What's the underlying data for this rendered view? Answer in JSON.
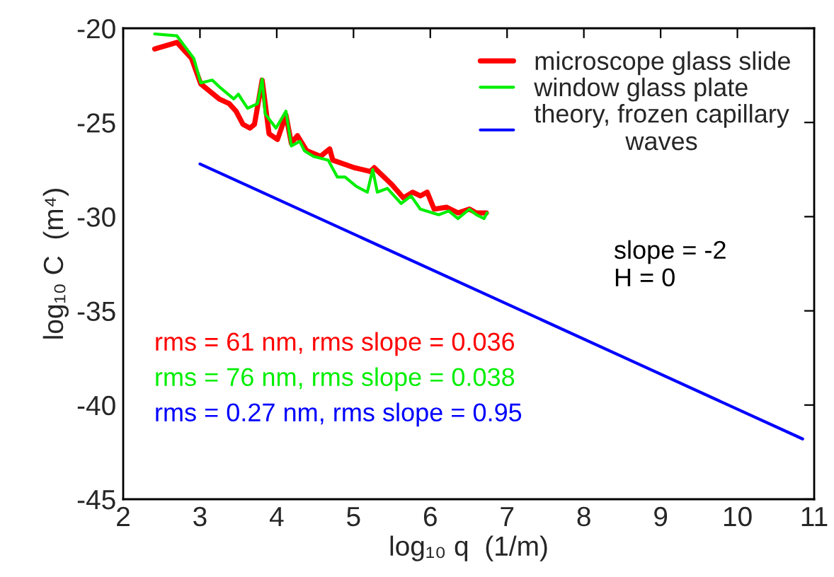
{
  "chart_data": {
    "type": "line",
    "xlabel": "log₁₀ q  (1/m)",
    "ylabel": "log₁₀ C  (m⁴)",
    "xlim": [
      2,
      11
    ],
    "ylim": [
      -45,
      -20
    ],
    "xticks": [
      2,
      3,
      4,
      5,
      6,
      7,
      8,
      9,
      10,
      11
    ],
    "yticks": [
      -45,
      -40,
      -35,
      -30,
      -25,
      -20
    ],
    "grid": false,
    "legend": "top right",
    "marker": "none",
    "line_style": "solid",
    "annotations": [
      "slope = -2\nH = 0",
      "rms = 61 nm, rms slope = 0.036",
      "rms = 76 nm, rms slope = 0.038",
      "rms = 0.27 nm, rms slope = 0.95"
    ],
    "series": [
      {
        "name": "microscope glass slide",
        "color": "#ff0000",
        "x": [
          2.41,
          2.7,
          2.89,
          3.01,
          3.25,
          3.38,
          3.47,
          3.56,
          3.65,
          3.71,
          3.81,
          3.9,
          4.01,
          4.12,
          4.19,
          4.27,
          4.39,
          4.57,
          4.69,
          4.73,
          5.01,
          5.22,
          5.27,
          5.5,
          5.65,
          5.77,
          5.87,
          5.96,
          6.05,
          6.21,
          6.36,
          6.51,
          6.6,
          6.73
        ],
        "values": [
          -21.1,
          -20.75,
          -21.6,
          -22.95,
          -23.75,
          -24.0,
          -24.4,
          -25.1,
          -25.3,
          -25.1,
          -22.75,
          -25.6,
          -25.9,
          -24.6,
          -26.1,
          -25.7,
          -26.5,
          -26.8,
          -26.4,
          -27.0,
          -27.4,
          -27.6,
          -27.4,
          -28.3,
          -29.0,
          -28.7,
          -28.9,
          -28.7,
          -29.6,
          -29.5,
          -29.8,
          -29.6,
          -29.8,
          -29.8
        ]
      },
      {
        "name": "window glass plate",
        "color": "#00ee00",
        "x": [
          2.41,
          2.7,
          2.92,
          3.01,
          3.16,
          3.25,
          3.44,
          3.5,
          3.62,
          3.75,
          3.81,
          3.85,
          3.99,
          4.12,
          4.19,
          4.3,
          4.36,
          4.48,
          4.67,
          4.79,
          4.89,
          5.04,
          5.18,
          5.25,
          5.31,
          5.44,
          5.62,
          5.75,
          5.87,
          6.11,
          6.24,
          6.36,
          6.51,
          6.6,
          6.7,
          6.74
        ],
        "values": [
          -20.3,
          -20.4,
          -21.6,
          -22.9,
          -22.75,
          -23.1,
          -23.75,
          -23.5,
          -24.25,
          -24.0,
          -22.7,
          -24.55,
          -25.3,
          -24.4,
          -26.25,
          -26.0,
          -26.5,
          -26.8,
          -27.0,
          -27.9,
          -27.9,
          -28.4,
          -28.7,
          -27.5,
          -28.7,
          -28.5,
          -29.3,
          -28.9,
          -29.6,
          -29.9,
          -29.7,
          -30.1,
          -29.6,
          -29.9,
          -30.1,
          -29.8
        ]
      },
      {
        "name": "theory, frozen capillary\nwaves",
        "color": "#0000ff",
        "x": [
          3.0,
          10.85
        ],
        "values": [
          -27.2,
          -41.8
        ]
      }
    ]
  }
}
